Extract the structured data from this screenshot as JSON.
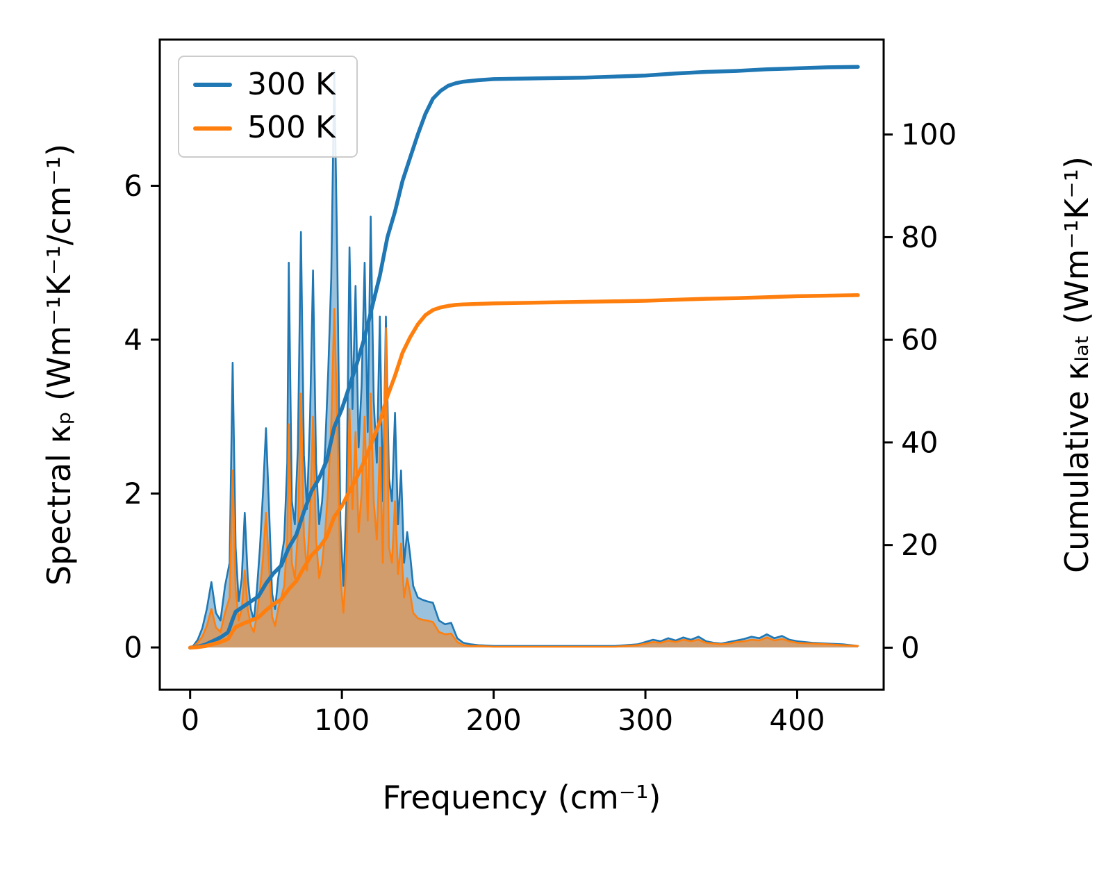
{
  "figure": {
    "background": "#ffffff",
    "axes": {
      "xlabel": "Frequency (cm⁻¹)",
      "ylabel_left": "Spectral κₚ (Wm⁻¹K⁻¹/cm⁻¹)",
      "ylabel_right": "Cumulative κₗₐₜ (Wm⁻¹K⁻¹)"
    },
    "legend": {
      "items": [
        {
          "label": "300 K",
          "color": "#1f77b4"
        },
        {
          "label": "500 K",
          "color": "#ff7f0e"
        }
      ]
    }
  },
  "chart_data": {
    "type": "line",
    "title": "",
    "xlabel": "Frequency (cm⁻¹)",
    "ylabel_left": "Spectral κₚ (Wm⁻¹K⁻¹/cm⁻¹)",
    "ylabel_right": "Cumulative κₗₐₜ (Wm⁻¹K⁻¹)",
    "xlim": [
      -20,
      457
    ],
    "ylim_left": [
      -0.55,
      7.9
    ],
    "ylim_right": [
      -8.2,
      118.5
    ],
    "xticks": [
      0,
      100,
      200,
      300,
      400
    ],
    "yticks_left": [
      0,
      2,
      4,
      6
    ],
    "yticks_right": [
      0,
      20,
      40,
      60,
      80,
      100
    ],
    "grid": false,
    "legend_position": "upper-left",
    "spectral_x": [
      2,
      5,
      8,
      11,
      14,
      17,
      20,
      23,
      26,
      28,
      30,
      32,
      34,
      36,
      38,
      40,
      42,
      44,
      46,
      48,
      50,
      52,
      54,
      56,
      58,
      60,
      62,
      64,
      65,
      67,
      69,
      71,
      73,
      75,
      77,
      79,
      81,
      83,
      85,
      87,
      89,
      91,
      93,
      95,
      97,
      99,
      101,
      103,
      105,
      107,
      109,
      111,
      113,
      115,
      117,
      119,
      121,
      123,
      125,
      127,
      129,
      131,
      133,
      135,
      137,
      139,
      141,
      143,
      145,
      147,
      150,
      153,
      156,
      160,
      164,
      168,
      172,
      176,
      180,
      185,
      190,
      200,
      220,
      240,
      260,
      280,
      295,
      300,
      305,
      310,
      315,
      320,
      325,
      330,
      335,
      340,
      345,
      350,
      355,
      360,
      365,
      370,
      375,
      380,
      385,
      390,
      395,
      400,
      410,
      420,
      430,
      440
    ],
    "spectral_series": [
      {
        "name": "300 K",
        "color": "#1f77b4",
        "fill_opacity": 0.45,
        "values": [
          0.02,
          0.1,
          0.25,
          0.5,
          0.85,
          0.45,
          0.35,
          0.8,
          1.1,
          3.7,
          1.3,
          0.6,
          0.9,
          1.75,
          0.9,
          0.5,
          0.35,
          0.75,
          1.3,
          2.0,
          2.85,
          1.8,
          0.7,
          0.5,
          0.9,
          1.15,
          1.4,
          2.4,
          5.0,
          1.9,
          1.6,
          2.6,
          5.4,
          2.5,
          1.8,
          3.0,
          4.9,
          2.4,
          1.6,
          1.9,
          2.6,
          3.6,
          4.8,
          7.5,
          5.0,
          1.6,
          0.8,
          1.9,
          5.2,
          3.1,
          4.7,
          2.6,
          3.4,
          5.0,
          2.8,
          5.6,
          3.2,
          2.4,
          4.3,
          1.9,
          4.3,
          2.2,
          1.9,
          3.05,
          1.6,
          2.3,
          1.1,
          1.5,
          1.2,
          0.8,
          0.65,
          0.62,
          0.6,
          0.58,
          0.35,
          0.3,
          0.32,
          0.12,
          0.06,
          0.04,
          0.03,
          0.02,
          0.02,
          0.02,
          0.02,
          0.02,
          0.04,
          0.07,
          0.1,
          0.08,
          0.12,
          0.09,
          0.13,
          0.1,
          0.14,
          0.08,
          0.06,
          0.05,
          0.07,
          0.09,
          0.11,
          0.14,
          0.12,
          0.17,
          0.12,
          0.15,
          0.1,
          0.08,
          0.06,
          0.05,
          0.04,
          0.02
        ]
      },
      {
        "name": "500 K",
        "color": "#ff7f0e",
        "fill_opacity": 0.55,
        "values": [
          0.01,
          0.06,
          0.14,
          0.28,
          0.5,
          0.26,
          0.2,
          0.45,
          0.65,
          2.3,
          0.75,
          0.35,
          0.5,
          1.0,
          0.5,
          0.28,
          0.2,
          0.42,
          0.75,
          1.15,
          1.75,
          1.05,
          0.4,
          0.28,
          0.5,
          0.65,
          0.8,
          1.4,
          2.9,
          1.1,
          0.9,
          1.5,
          3.3,
          1.45,
          1.0,
          1.75,
          3.0,
          1.4,
          0.9,
          1.1,
          1.5,
          2.1,
          2.9,
          4.4,
          2.9,
          0.9,
          0.45,
          1.1,
          3.1,
          1.8,
          2.8,
          1.5,
          2.0,
          3.0,
          1.65,
          3.3,
          1.9,
          1.4,
          2.6,
          1.1,
          4.15,
          1.3,
          1.1,
          1.9,
          0.95,
          1.35,
          0.65,
          0.9,
          0.7,
          0.45,
          0.38,
          0.36,
          0.35,
          0.33,
          0.2,
          0.17,
          0.18,
          0.07,
          0.03,
          0.02,
          0.02,
          0.01,
          0.01,
          0.01,
          0.01,
          0.01,
          0.03,
          0.05,
          0.07,
          0.06,
          0.09,
          0.07,
          0.1,
          0.08,
          0.1,
          0.06,
          0.05,
          0.04,
          0.05,
          0.07,
          0.08,
          0.1,
          0.09,
          0.13,
          0.09,
          0.11,
          0.08,
          0.06,
          0.05,
          0.04,
          0.03,
          0.02
        ]
      }
    ],
    "cumulative_x": [
      0,
      5,
      10,
      15,
      20,
      25,
      28,
      30,
      35,
      40,
      45,
      50,
      55,
      60,
      65,
      70,
      75,
      80,
      85,
      90,
      95,
      100,
      105,
      110,
      115,
      120,
      125,
      130,
      135,
      140,
      145,
      150,
      155,
      160,
      165,
      170,
      175,
      180,
      190,
      200,
      220,
      240,
      260,
      280,
      300,
      320,
      340,
      360,
      380,
      400,
      420,
      440
    ],
    "cumulative_series": [
      {
        "name": "300 K",
        "color": "#1f77b4",
        "axis": "right",
        "values": [
          0,
          0.2,
          0.6,
          1.3,
          2.0,
          3.0,
          5.5,
          7.0,
          8.0,
          9.0,
          10.0,
          12.5,
          14.5,
          16.0,
          19.5,
          22.0,
          26.5,
          30.5,
          33.0,
          36.5,
          43.0,
          46.5,
          51.0,
          55.5,
          60.5,
          66.5,
          72.5,
          80.0,
          85.0,
          91.0,
          95.5,
          100.0,
          104.0,
          107.0,
          108.5,
          109.5,
          110.0,
          110.3,
          110.6,
          110.8,
          110.9,
          111.0,
          111.1,
          111.3,
          111.5,
          111.9,
          112.2,
          112.4,
          112.7,
          112.9,
          113.1,
          113.2
        ]
      },
      {
        "name": "500 K",
        "color": "#ff7f0e",
        "axis": "right",
        "values": [
          0,
          0.1,
          0.3,
          0.7,
          1.1,
          1.7,
          3.2,
          4.0,
          4.7,
          5.3,
          5.9,
          7.3,
          8.5,
          9.4,
          11.4,
          13.0,
          15.6,
          18.0,
          19.5,
          21.6,
          25.5,
          27.6,
          30.5,
          33.3,
          36.5,
          40.2,
          44.0,
          49.0,
          53.0,
          57.5,
          60.5,
          63.0,
          64.8,
          65.8,
          66.3,
          66.6,
          66.8,
          66.9,
          67.0,
          67.1,
          67.2,
          67.3,
          67.4,
          67.5,
          67.6,
          67.8,
          68.0,
          68.1,
          68.3,
          68.5,
          68.6,
          68.7
        ]
      }
    ]
  }
}
